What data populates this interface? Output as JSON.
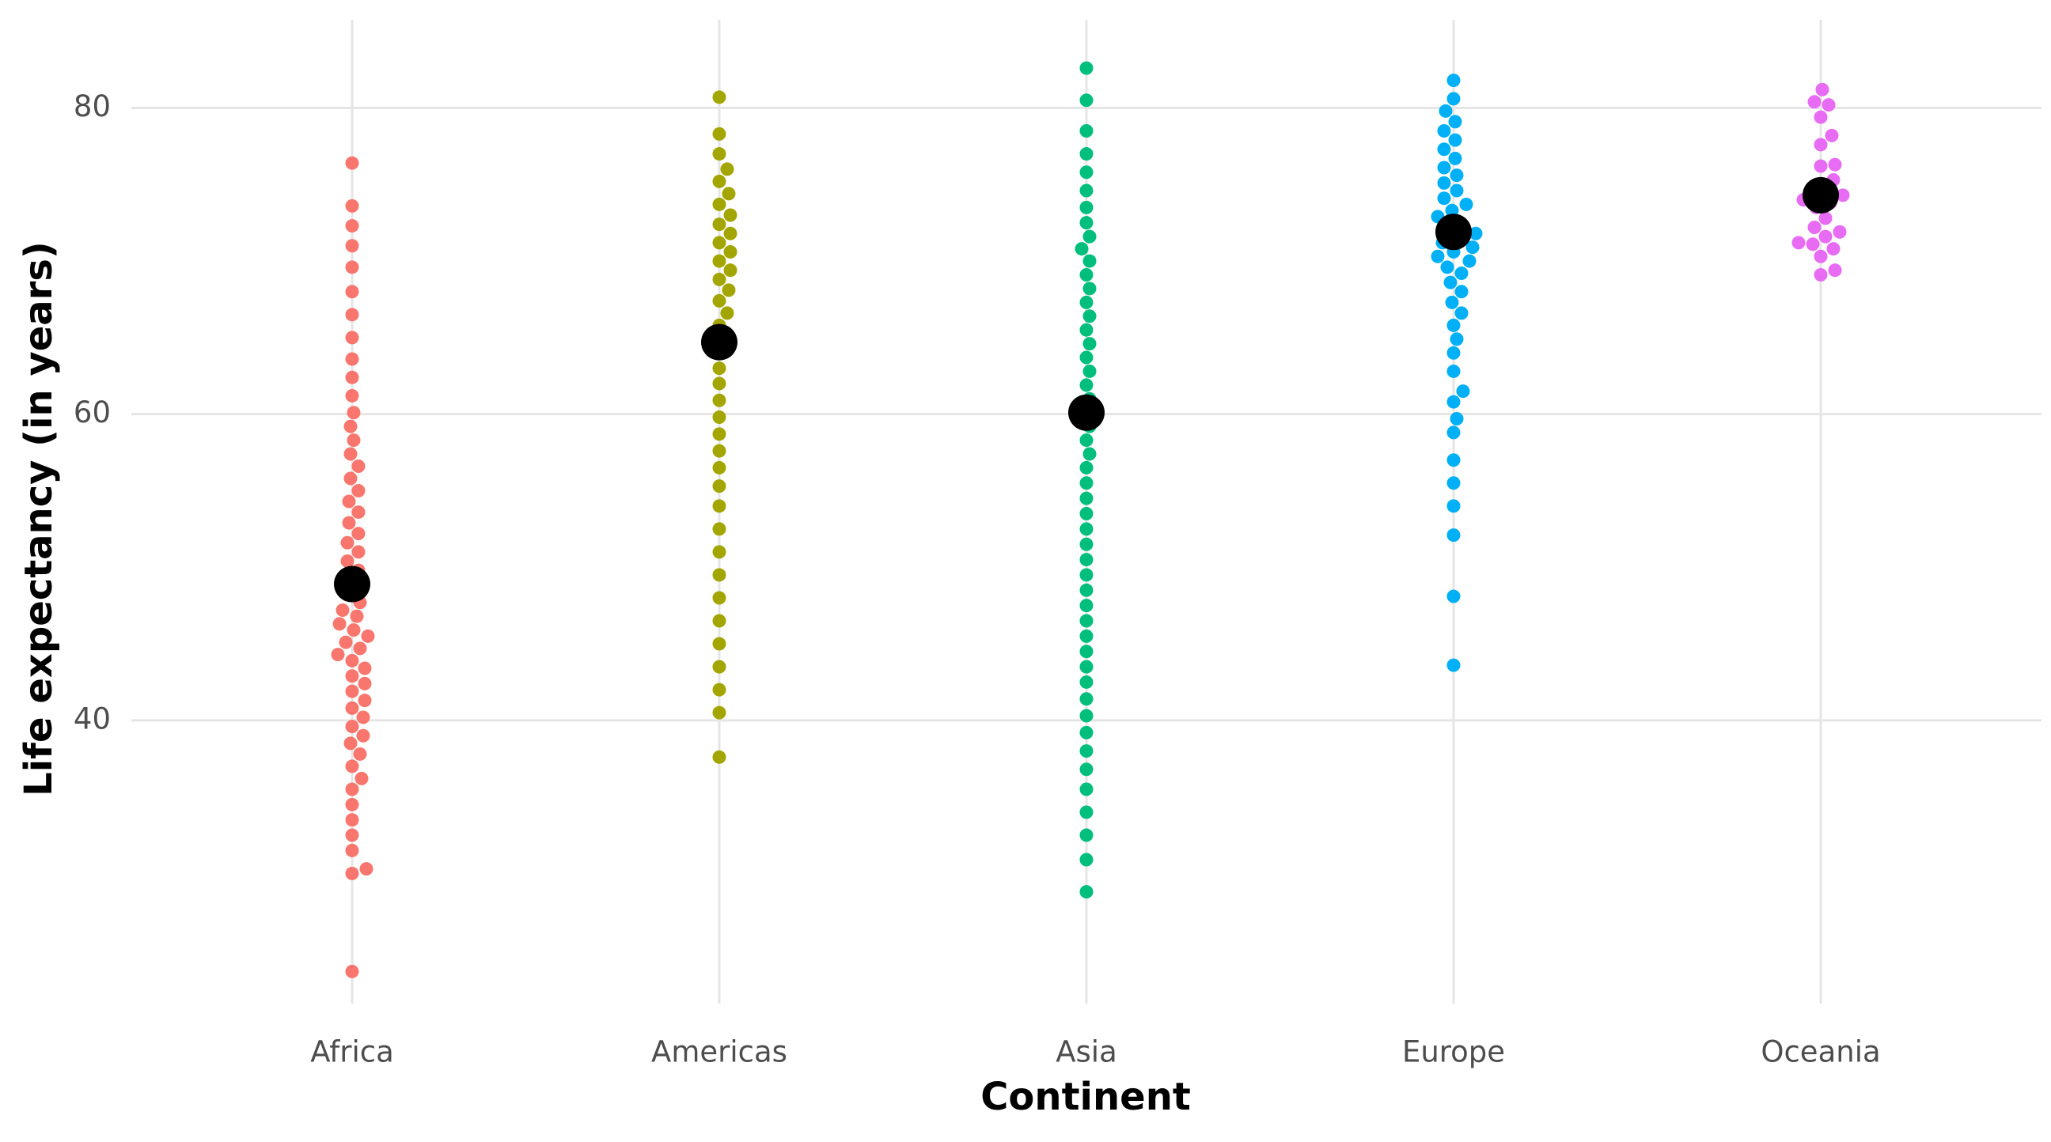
{
  "chart_data": {
    "type": "beeswarm",
    "x_label": "Continent",
    "y_label": "Life expectancy (in years)",
    "categories": [
      "Africa",
      "Americas",
      "Asia",
      "Europe",
      "Oceania"
    ],
    "groups": [
      {
        "color": "#F8766D",
        "values": [
          23.6,
          30,
          30.3,
          31.5,
          32.5,
          33.5,
          34.5,
          35.5,
          36.2,
          37,
          37.8,
          38.5,
          39,
          39.6,
          40.2,
          40.8,
          41.3,
          41.9,
          42.4,
          42.9,
          43.4,
          43.9,
          44.3,
          44.7,
          45.1,
          45.5,
          45.9,
          46.3,
          46.8,
          47.2,
          47.7,
          48.2,
          48.7,
          49.2,
          49.8,
          50.4,
          51,
          51.6,
          52.2,
          52.9,
          53.6,
          54.3,
          55,
          55.8,
          56.6,
          57.4,
          58.3,
          59.2,
          60.1,
          61.2,
          62.4,
          63.6,
          65,
          66.5,
          68,
          69.6,
          71,
          72.3,
          73.6,
          76.4
        ]
      },
      {
        "color": "#A3A500",
        "values": [
          37.6,
          40.5,
          42,
          43.5,
          45,
          46.5,
          48,
          49.5,
          51,
          52.5,
          54,
          55.3,
          56.5,
          57.6,
          58.7,
          59.8,
          60.9,
          62,
          63,
          64,
          64.9,
          65.8,
          66.6,
          67.4,
          68.1,
          68.8,
          69.4,
          70,
          70.6,
          71.2,
          71.8,
          72.4,
          73,
          73.7,
          74.4,
          75.2,
          76,
          77,
          78.3,
          80.7
        ]
      },
      {
        "color": "#00BF7D",
        "values": [
          28.8,
          30.9,
          32.5,
          34,
          35.5,
          36.8,
          38,
          39.2,
          40.3,
          41.4,
          42.5,
          43.5,
          44.5,
          45.5,
          46.5,
          47.5,
          48.5,
          49.5,
          50.5,
          51.5,
          52.5,
          53.5,
          54.5,
          55.5,
          56.5,
          57.4,
          58.3,
          59.2,
          60.1,
          61,
          61.9,
          62.8,
          63.7,
          64.6,
          65.5,
          66.4,
          67.3,
          68.2,
          69.1,
          70,
          70.8,
          71.6,
          72.5,
          73.5,
          74.6,
          75.8,
          77,
          78.5,
          80.5,
          82.6
        ]
      },
      {
        "color": "#00B0F6",
        "values": [
          43.6,
          48.1,
          52.1,
          54,
          55.5,
          57,
          58.8,
          59.7,
          60.8,
          61.5,
          62.8,
          64,
          64.9,
          65.8,
          66.6,
          67.3,
          68,
          68.6,
          69.2,
          69.6,
          70,
          70.3,
          70.6,
          70.9,
          71.2,
          71.5,
          71.8,
          72.1,
          72.5,
          72.9,
          73.3,
          73.7,
          74.1,
          74.6,
          75.1,
          75.6,
          76.1,
          76.7,
          77.3,
          77.9,
          78.5,
          79.1,
          79.8,
          80.6,
          81.8
        ]
      },
      {
        "color": "#E76BF3",
        "values": [
          69.1,
          69.4,
          70.3,
          70.8,
          71.1,
          71.2,
          71.6,
          71.9,
          72.2,
          72.8,
          73.5,
          73.8,
          74,
          74.3,
          74.8,
          75.3,
          76.2,
          76.3,
          77.6,
          78.2,
          79.4,
          80.2,
          80.4,
          81.2
        ]
      }
    ],
    "means": [
      48.9,
      64.7,
      60.1,
      71.9,
      74.3
    ],
    "mean_color": "#000000",
    "ylim": [
      21.5,
      85.5
    ],
    "yticks": [
      40,
      60,
      80
    ],
    "grid": true
  }
}
